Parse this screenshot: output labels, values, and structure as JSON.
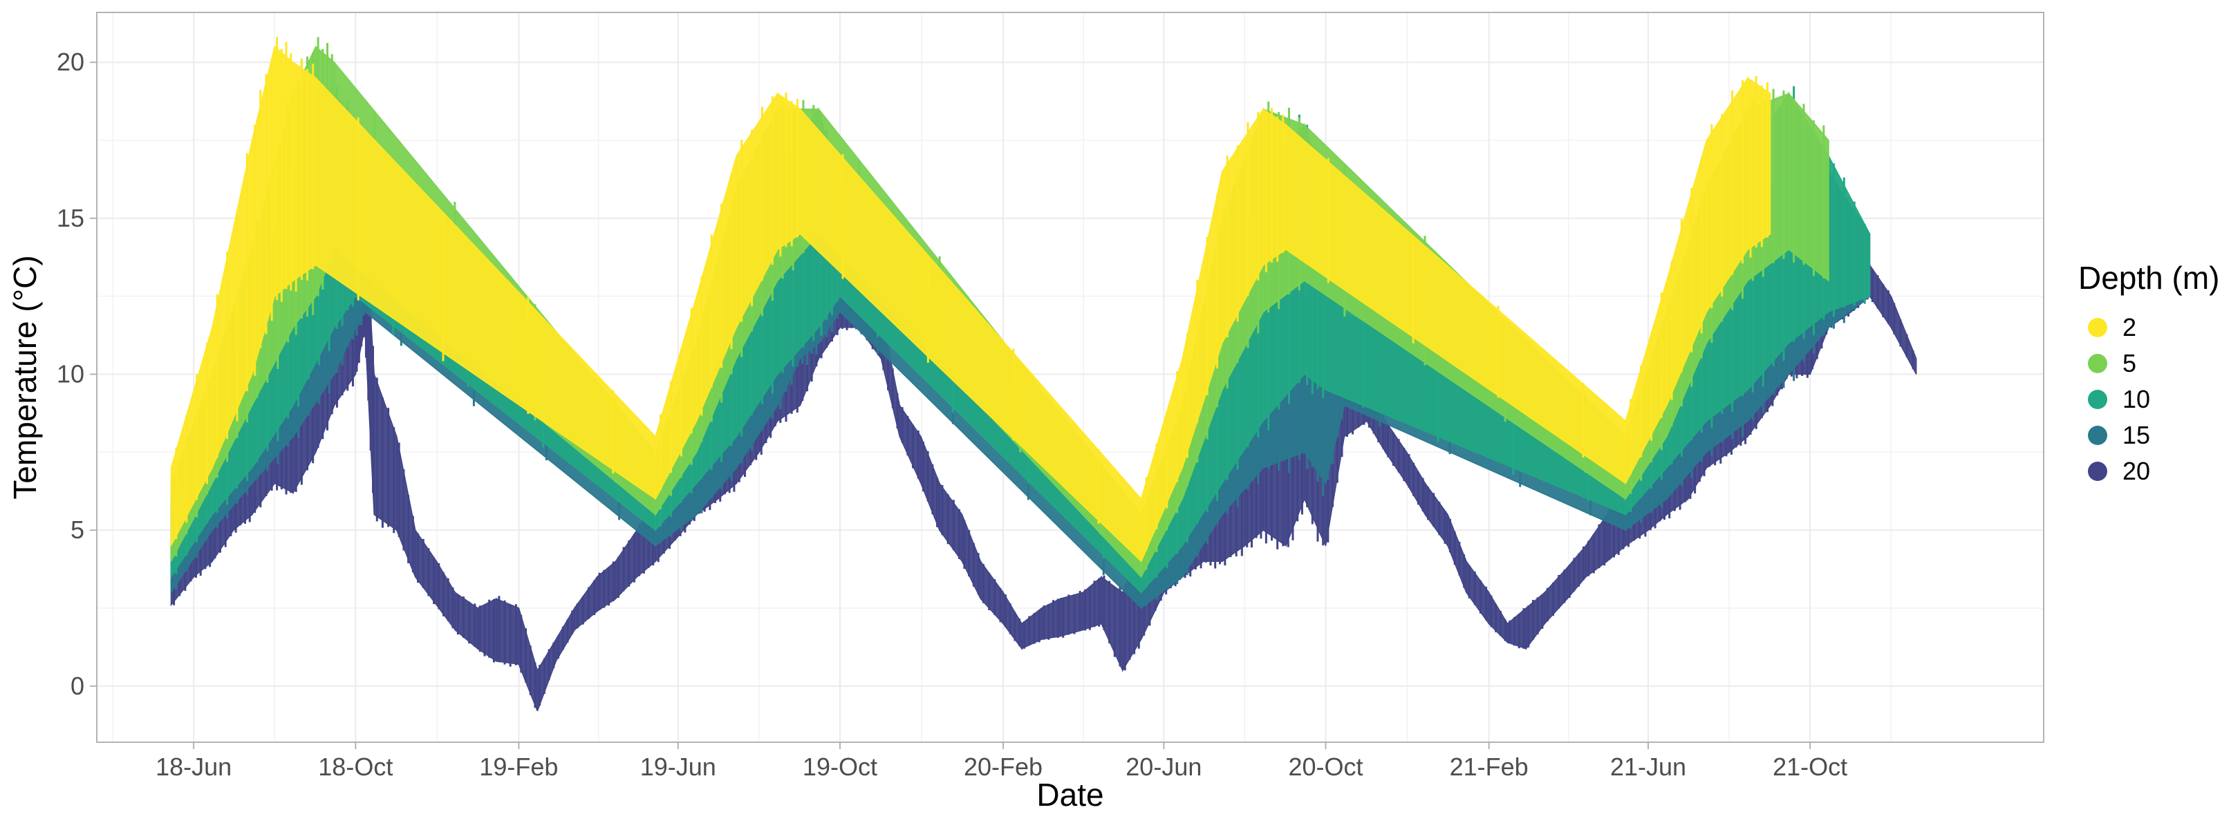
{
  "chart_data": {
    "type": "scatter",
    "title": "",
    "xlabel": "Date",
    "ylabel": "Temperature (°C)",
    "x_type": "date",
    "xlim": [
      "2018-03-20",
      "2022-03-26"
    ],
    "ylim": [
      -1.8,
      21.6
    ],
    "x_ticks": [
      {
        "date": "2018-06-01",
        "label": "18-Jun"
      },
      {
        "date": "2018-10-01",
        "label": "18-Oct"
      },
      {
        "date": "2019-02-01",
        "label": "19-Feb"
      },
      {
        "date": "2019-06-01",
        "label": "19-Jun"
      },
      {
        "date": "2019-10-01",
        "label": "19-Oct"
      },
      {
        "date": "2020-02-01",
        "label": "20-Feb"
      },
      {
        "date": "2020-06-01",
        "label": "20-Jun"
      },
      {
        "date": "2020-10-01",
        "label": "20-Oct"
      },
      {
        "date": "2021-02-01",
        "label": "21-Feb"
      },
      {
        "date": "2021-06-01",
        "label": "21-Jun"
      },
      {
        "date": "2021-10-01",
        "label": "21-Oct"
      }
    ],
    "y_ticks": [
      0,
      5,
      10,
      15,
      20
    ],
    "grid": true,
    "legend": {
      "title": "Depth (m)",
      "position": "right",
      "entries": [
        {
          "label": "2",
          "color": "#FDE725"
        },
        {
          "label": "5",
          "color": "#7AD151"
        },
        {
          "label": "10",
          "color": "#22A884"
        },
        {
          "label": "15",
          "color": "#2A788E"
        },
        {
          "label": "20",
          "color": "#414487"
        }
      ]
    },
    "series": [
      {
        "depth": 20,
        "color": "#414487",
        "x": [
          "2018-05-15",
          "2018-06-01",
          "2018-06-15",
          "2018-07-01",
          "2018-07-15",
          "2018-08-01",
          "2018-08-15",
          "2018-09-01",
          "2018-09-15",
          "2018-10-01",
          "2018-10-08",
          "2018-10-15",
          "2018-11-01",
          "2018-11-15",
          "2018-12-01",
          "2018-12-15",
          "2019-01-01",
          "2019-01-15",
          "2019-02-01",
          "2019-02-15",
          "2019-03-01",
          "2019-03-15",
          "2019-04-01",
          "2019-04-15",
          "2019-05-01",
          "2019-05-15",
          "2019-06-01",
          "2019-06-15",
          "2019-07-01",
          "2019-07-15",
          "2019-08-01",
          "2019-08-15",
          "2019-09-01",
          "2019-09-15",
          "2019-10-01",
          "2019-10-15",
          "2019-11-01",
          "2019-11-15",
          "2019-12-01",
          "2019-12-15",
          "2020-01-01",
          "2020-01-15",
          "2020-02-01",
          "2020-02-15",
          "2020-03-01",
          "2020-03-15",
          "2020-04-01",
          "2020-04-15",
          "2020-05-01",
          "2020-05-15",
          "2020-06-01",
          "2020-06-15",
          "2020-07-01",
          "2020-07-15",
          "2020-08-01",
          "2020-08-15",
          "2020-09-01",
          "2020-09-15",
          "2020-10-01",
          "2020-10-15",
          "2020-11-01",
          "2020-11-15",
          "2020-12-01",
          "2020-12-15",
          "2021-01-01",
          "2021-01-15",
          "2021-02-01",
          "2021-02-15",
          "2021-03-01",
          "2021-03-15",
          "2021-04-01",
          "2021-04-15",
          "2021-05-01",
          "2021-05-15",
          "2021-06-01",
          "2021-06-15",
          "2021-07-01",
          "2021-07-15",
          "2021-08-01",
          "2021-08-15",
          "2021-09-01",
          "2021-09-15",
          "2021-10-01",
          "2021-10-15",
          "2021-11-01",
          "2021-11-15",
          "2021-12-01",
          "2021-12-20"
        ],
        "y_min": [
          2.6,
          3.5,
          4.0,
          5.0,
          5.5,
          6.5,
          6.2,
          7.5,
          9.0,
          10.0,
          11.5,
          5.5,
          5.0,
          3.5,
          2.6,
          1.8,
          1.2,
          0.8,
          0.7,
          -0.8,
          0.8,
          1.8,
          2.4,
          2.8,
          3.5,
          4.0,
          4.8,
          5.5,
          6.0,
          6.5,
          7.5,
          8.5,
          9.0,
          10.5,
          11.5,
          11.5,
          10.5,
          8.0,
          6.5,
          5.0,
          4.0,
          2.8,
          2.0,
          1.2,
          1.5,
          1.6,
          1.8,
          2.0,
          0.5,
          1.5,
          3.0,
          3.5,
          4.0,
          4.0,
          4.5,
          5.0,
          4.5,
          6.0,
          4.5,
          8.0,
          8.5,
          7.5,
          6.5,
          5.5,
          4.5,
          3.0,
          2.0,
          1.4,
          1.2,
          2.0,
          2.8,
          3.5,
          4.0,
          4.5,
          5.0,
          5.5,
          6.0,
          7.0,
          7.5,
          8.0,
          9.0,
          10.0,
          10.0,
          11.5,
          12.0,
          12.5,
          11.5,
          10.0
        ],
        "y_max": [
          4.5,
          6.0,
          6.5,
          8.0,
          8.5,
          9.5,
          10.0,
          11.5,
          13.0,
          14.5,
          15.0,
          10.0,
          8.0,
          5.0,
          4.0,
          3.0,
          2.5,
          2.8,
          2.5,
          0.5,
          1.5,
          2.5,
          3.5,
          4.0,
          5.0,
          6.0,
          7.0,
          8.0,
          9.0,
          10.0,
          11.0,
          12.0,
          12.5,
          13.0,
          13.5,
          13.0,
          12.0,
          9.0,
          8.0,
          6.5,
          5.5,
          4.0,
          3.0,
          2.0,
          2.5,
          2.8,
          3.0,
          3.5,
          3.0,
          4.5,
          5.0,
          6.0,
          7.5,
          8.0,
          9.0,
          11.0,
          11.0,
          12.5,
          12.0,
          11.0,
          10.0,
          8.5,
          7.5,
          6.5,
          5.5,
          4.0,
          3.0,
          2.0,
          2.5,
          3.0,
          3.8,
          4.5,
          5.5,
          6.5,
          7.5,
          8.5,
          9.5,
          10.0,
          10.5,
          11.0,
          11.5,
          12.0,
          12.5,
          13.0,
          13.5,
          13.5,
          12.5,
          10.5
        ]
      },
      {
        "depth": 15,
        "color": "#2A788E",
        "x": [
          "2018-05-15",
          "2018-06-15",
          "2018-07-15",
          "2018-08-15",
          "2018-09-15",
          "2018-10-01",
          "2018-10-08",
          "2019-05-15",
          "2019-06-15",
          "2019-07-15",
          "2019-08-15",
          "2019-09-01",
          "2019-09-15",
          "2019-10-01",
          "2020-05-15",
          "2020-06-15",
          "2020-07-15",
          "2020-08-15",
          "2020-09-15",
          "2020-10-01",
          "2020-10-15",
          "2021-05-15",
          "2021-06-15",
          "2021-07-15",
          "2021-08-15",
          "2021-09-15",
          "2021-10-15",
          "2021-11-15"
        ],
        "y_min": [
          3.0,
          5.0,
          6.5,
          8.0,
          10.0,
          11.5,
          12.0,
          4.5,
          5.5,
          7.0,
          9.0,
          10.5,
          11.0,
          12.0,
          2.5,
          3.5,
          5.5,
          7.0,
          7.5,
          6.5,
          9.0,
          5.0,
          6.0,
          7.5,
          8.5,
          10.0,
          11.5,
          12.5
        ],
        "y_max": [
          5.5,
          8.0,
          10.5,
          14.0,
          16.0,
          17.0,
          16.5,
          6.5,
          8.5,
          11.0,
          14.0,
          17.0,
          17.5,
          15.5,
          4.5,
          6.5,
          10.0,
          14.0,
          16.0,
          15.5,
          12.0,
          7.0,
          9.5,
          12.5,
          15.0,
          17.0,
          16.5,
          14.5
        ]
      },
      {
        "depth": 10,
        "color": "#22A884",
        "x": [
          "2018-05-15",
          "2018-06-15",
          "2018-07-15",
          "2018-08-15",
          "2018-09-15",
          "2018-10-01",
          "2019-05-15",
          "2019-06-15",
          "2019-07-15",
          "2019-08-15",
          "2019-09-15",
          "2019-10-01",
          "2020-05-15",
          "2020-06-15",
          "2020-07-15",
          "2020-08-15",
          "2020-09-15",
          "2020-10-01",
          "2021-05-15",
          "2021-06-15",
          "2021-07-15",
          "2021-08-15",
          "2021-09-15",
          "2021-10-15",
          "2021-11-15"
        ],
        "y_min": [
          3.5,
          5.5,
          7.0,
          9.0,
          11.5,
          12.5,
          5.0,
          6.5,
          8.0,
          10.0,
          11.5,
          12.5,
          3.0,
          4.5,
          6.5,
          8.5,
          10.0,
          9.5,
          5.5,
          7.0,
          8.5,
          9.5,
          11.0,
          12.0,
          12.5
        ],
        "y_max": [
          6.0,
          9.0,
          12.0,
          16.5,
          19.0,
          18.0,
          7.0,
          9.5,
          13.0,
          16.5,
          18.5,
          16.0,
          5.0,
          7.5,
          12.0,
          16.5,
          18.0,
          16.0,
          7.5,
          10.5,
          14.0,
          17.0,
          19.0,
          17.0,
          14.5
        ]
      },
      {
        "depth": 5,
        "color": "#7AD151",
        "x": [
          "2018-05-15",
          "2018-06-15",
          "2018-07-15",
          "2018-08-15",
          "2018-09-01",
          "2018-09-15",
          "2019-05-15",
          "2019-06-15",
          "2019-07-15",
          "2019-08-15",
          "2019-09-15",
          "2020-05-15",
          "2020-06-15",
          "2020-07-15",
          "2020-08-15",
          "2020-09-15",
          "2021-05-15",
          "2021-06-15",
          "2021-07-15",
          "2021-08-15",
          "2021-09-15",
          "2021-10-15"
        ],
        "y_min": [
          4.0,
          6.5,
          9.0,
          11.5,
          12.5,
          14.0,
          5.5,
          7.5,
          10.5,
          13.0,
          14.5,
          3.5,
          6.0,
          9.5,
          12.0,
          13.0,
          6.0,
          8.0,
          11.0,
          13.0,
          14.0,
          13.0
        ],
        "y_max": [
          6.5,
          10.0,
          14.0,
          19.0,
          20.5,
          20.0,
          7.5,
          11.0,
          16.0,
          18.5,
          18.5,
          5.5,
          9.0,
          15.0,
          18.5,
          18.0,
          8.0,
          12.0,
          16.0,
          18.5,
          19.0,
          17.5
        ]
      },
      {
        "depth": 2,
        "color": "#FDE725",
        "x": [
          "2018-05-15",
          "2018-06-15",
          "2018-07-15",
          "2018-08-01",
          "2018-08-15",
          "2018-09-01",
          "2019-05-15",
          "2019-06-15",
          "2019-07-15",
          "2019-08-15",
          "2019-09-01",
          "2020-05-15",
          "2020-06-15",
          "2020-07-15",
          "2020-08-15",
          "2020-09-01",
          "2021-05-15",
          "2021-06-15",
          "2021-07-15",
          "2021-08-15",
          "2021-09-01"
        ],
        "y_min": [
          4.5,
          7.0,
          10.0,
          12.5,
          13.0,
          13.5,
          6.0,
          8.5,
          11.5,
          14.0,
          14.5,
          4.0,
          7.0,
          11.0,
          13.5,
          14.0,
          6.5,
          9.0,
          12.0,
          14.0,
          14.5
        ],
        "y_max": [
          7.0,
          11.5,
          17.5,
          20.5,
          20.0,
          19.5,
          8.0,
          12.5,
          17.0,
          19.0,
          18.5,
          6.0,
          10.5,
          16.5,
          18.5,
          18.0,
          8.5,
          13.0,
          17.5,
          19.5,
          19.0
        ]
      }
    ]
  }
}
